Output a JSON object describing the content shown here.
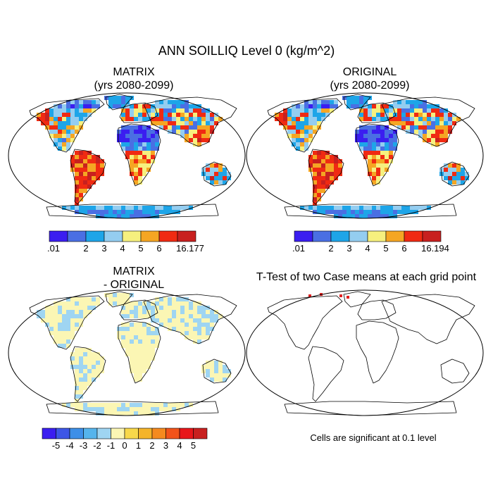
{
  "chart_data": {
    "type": "heatmap",
    "title": "ANN SOILLIQ Level 0 (kg/m^2)",
    "panels": [
      {
        "name": "matrix",
        "title_lines": [
          "MATRIX",
          "(yrs 2080-2099)"
        ],
        "colorbar": {
          "colors": [
            "#3b1ef0",
            "#4a6fe3",
            "#1ea5e8",
            "#94cdf0",
            "#f6f07e",
            "#f5a623",
            "#f02a12",
            "#c8201f"
          ],
          "tick_labels": [
            ".01",
            "2",
            "3",
            "4",
            "5",
            "6",
            "16.177"
          ]
        }
      },
      {
        "name": "original",
        "title_lines": [
          "ORIGINAL",
          "(yrs 2080-2099)"
        ],
        "colorbar": {
          "colors": [
            "#3b1ef0",
            "#4a6fe3",
            "#1ea5e8",
            "#94cdf0",
            "#f6f07e",
            "#f5a623",
            "#f02a12",
            "#c8201f"
          ],
          "tick_labels": [
            ".01",
            "2",
            "3",
            "4",
            "5",
            "6",
            "16.194"
          ]
        }
      },
      {
        "name": "difference",
        "title_lines": [
          "MATRIX",
          "- ORIGINAL"
        ],
        "colorbar": {
          "colors": [
            "#3b1ef0",
            "#3d56e6",
            "#3d8fe8",
            "#55b4ec",
            "#9fd5f2",
            "#fbf6b4",
            "#f8d84a",
            "#f5b42a",
            "#f58a1f",
            "#f2531a",
            "#e8161a",
            "#c8201f"
          ],
          "tick_labels": [
            "-5",
            "-4",
            "-3",
            "-2",
            "-1",
            "0",
            "1",
            "2",
            "3",
            "4",
            "5"
          ]
        }
      },
      {
        "name": "ttest",
        "title_lines": [
          "T-Test of two Case means at each grid point"
        ],
        "caption": "Cells are significant at 0.1 level",
        "significant_color": "#e02020"
      }
    ]
  }
}
